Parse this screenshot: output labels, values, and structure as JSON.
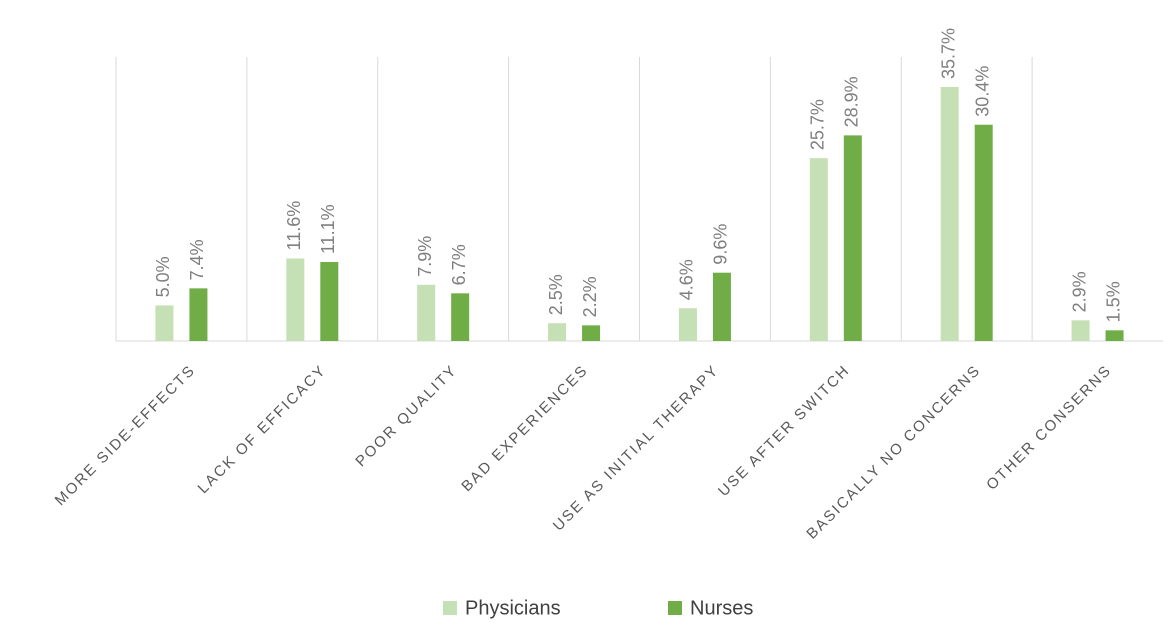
{
  "chart_data": {
    "type": "bar",
    "categories": [
      "MORE SIDE-EFFECTS",
      "LACK OF EFFICACY",
      "POOR QUALITY",
      "BAD EXPERIENCES",
      "USE AS INITIAL THERAPY",
      "USE AFTER SWITCH",
      "BASICALLY NO CONCERNS",
      "OTHER CONSERNS"
    ],
    "series": [
      {
        "name": "Physicians",
        "color": "#c5e0b4",
        "values": [
          5.0,
          11.6,
          7.9,
          2.5,
          4.6,
          25.7,
          35.7,
          2.9
        ],
        "value_labels": [
          "5.0%",
          "11.6%",
          "7.9%",
          "2.5%",
          "4.6%",
          "25.7%",
          "35.7%",
          "2.9%"
        ]
      },
      {
        "name": "Nurses",
        "color": "#70ad47",
        "values": [
          7.4,
          11.1,
          6.7,
          2.2,
          9.6,
          28.9,
          30.4,
          1.5
        ],
        "value_labels": [
          "7.4%",
          "11.1%",
          "6.7%",
          "2.2%",
          "9.6%",
          "28.9%",
          "30.4%",
          "1.5%"
        ]
      }
    ],
    "legend": "bottom"
  }
}
